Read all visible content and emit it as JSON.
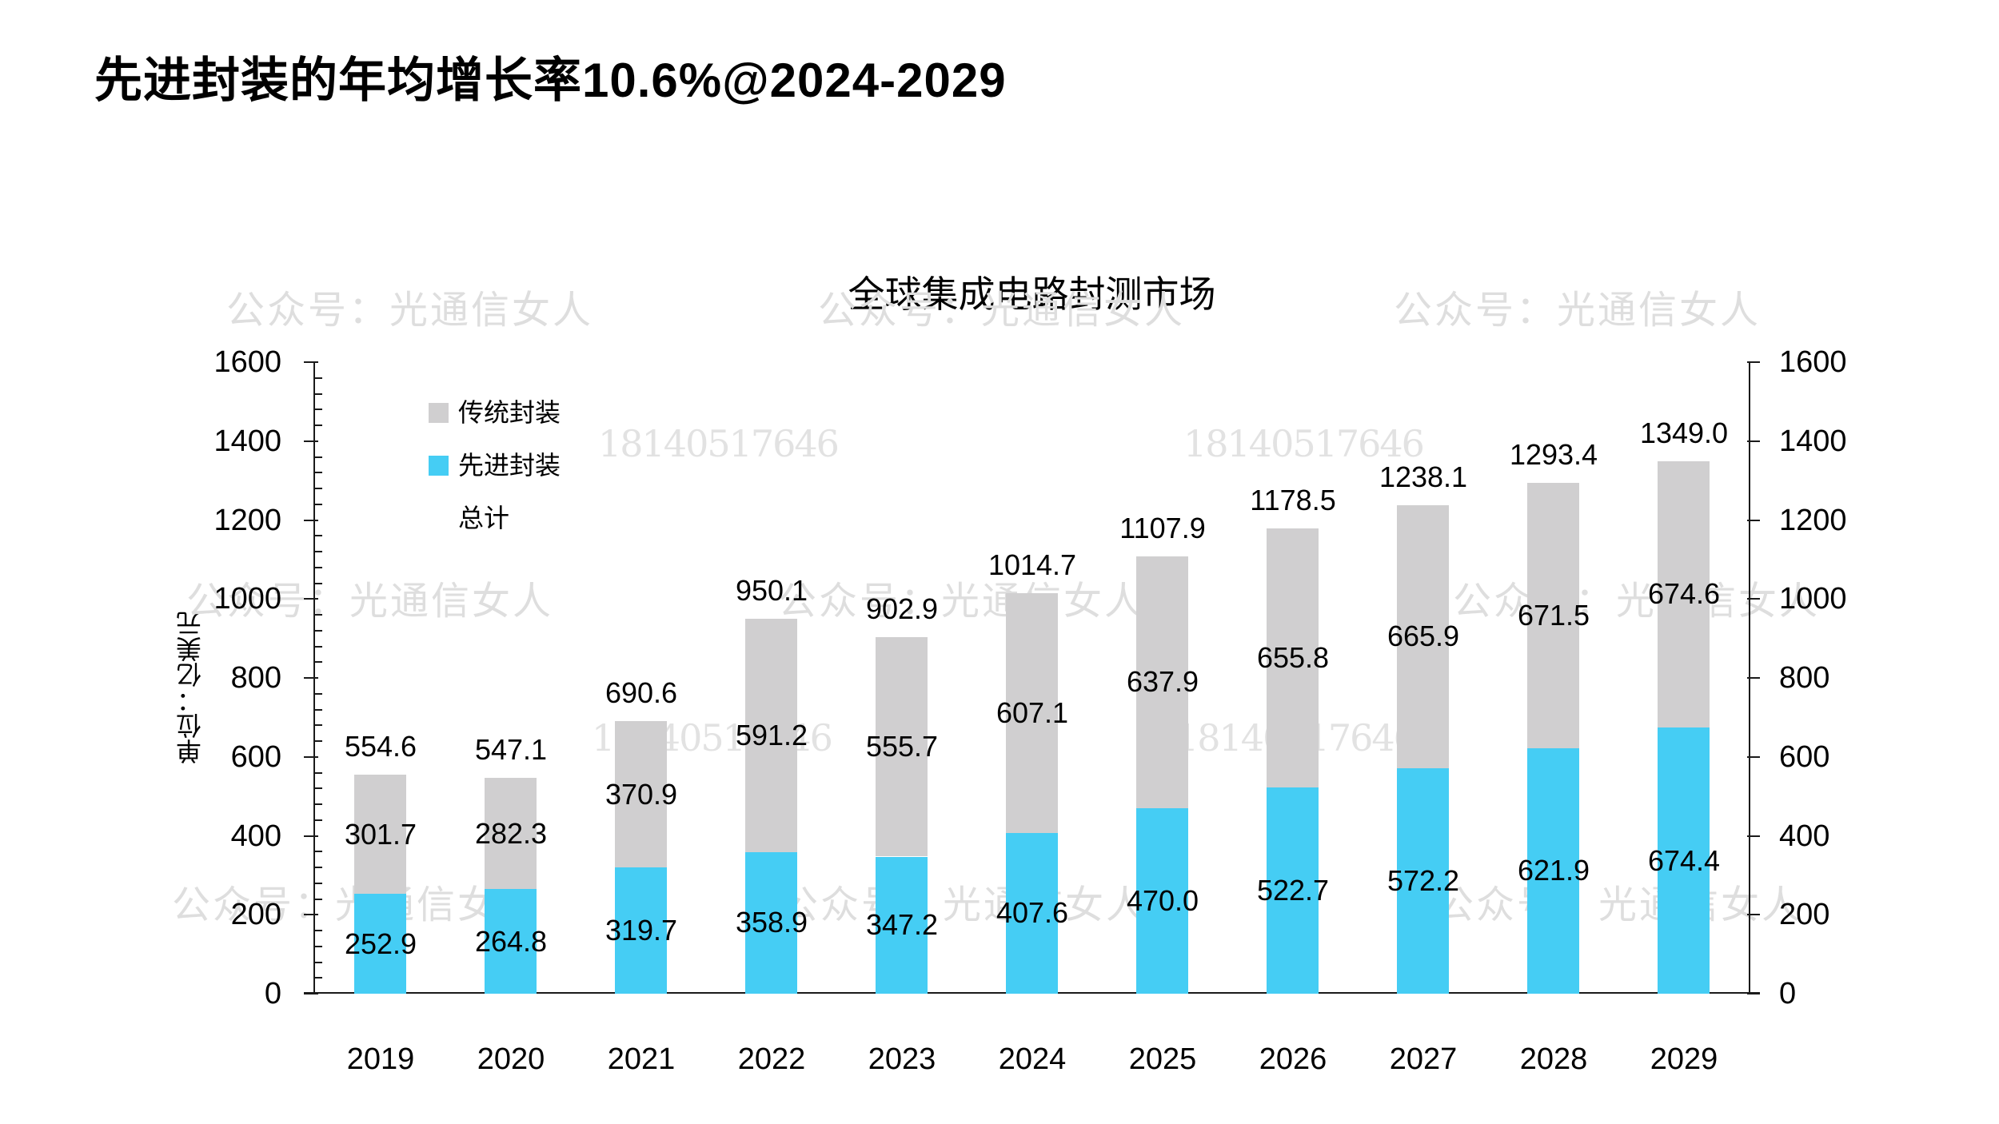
{
  "page_title": "先进封装的年均增长率10.6%@2024-2029",
  "watermarks": {
    "account_text": "公众号：光通信女人",
    "phone_text": "18140517646"
  },
  "chart_data": {
    "type": "bar",
    "stacked": true,
    "title": "全球集成电路封测市场",
    "unit_label": "单位：亿美元",
    "categories": [
      "2019",
      "2020",
      "2021",
      "2022",
      "2023",
      "2024",
      "2025",
      "2026",
      "2027",
      "2028",
      "2029"
    ],
    "series": [
      {
        "name": "先进封装",
        "color": "#45CDF4",
        "values": [
          252.9,
          264.8,
          319.7,
          358.9,
          347.2,
          407.6,
          470.0,
          522.7,
          572.2,
          621.9,
          674.4
        ]
      },
      {
        "name": "传统封装",
        "color": "#D0CFD0",
        "values": [
          301.7,
          282.3,
          370.9,
          591.2,
          555.7,
          607.1,
          637.9,
          655.8,
          665.9,
          671.5,
          674.6
        ]
      }
    ],
    "totals": [
      554.6,
      547.1,
      690.6,
      950.1,
      902.9,
      1014.7,
      1107.9,
      1178.5,
      1238.1,
      1293.4,
      1349.0
    ],
    "legend": [
      {
        "label": "传统封装",
        "color": "#D0CFD0"
      },
      {
        "label": "先进封装",
        "color": "#45CDF4"
      },
      {
        "label": "总计",
        "color": ""
      }
    ],
    "ylim": [
      0,
      1600
    ],
    "y_major": 200,
    "y_minor": 40,
    "y_ticks": [
      0,
      200,
      400,
      600,
      800,
      1000,
      1200,
      1400,
      1600
    ],
    "axes": "dual y-axis (left and right), grid off, legend top-left inside plot",
    "label_decimals": 1
  }
}
